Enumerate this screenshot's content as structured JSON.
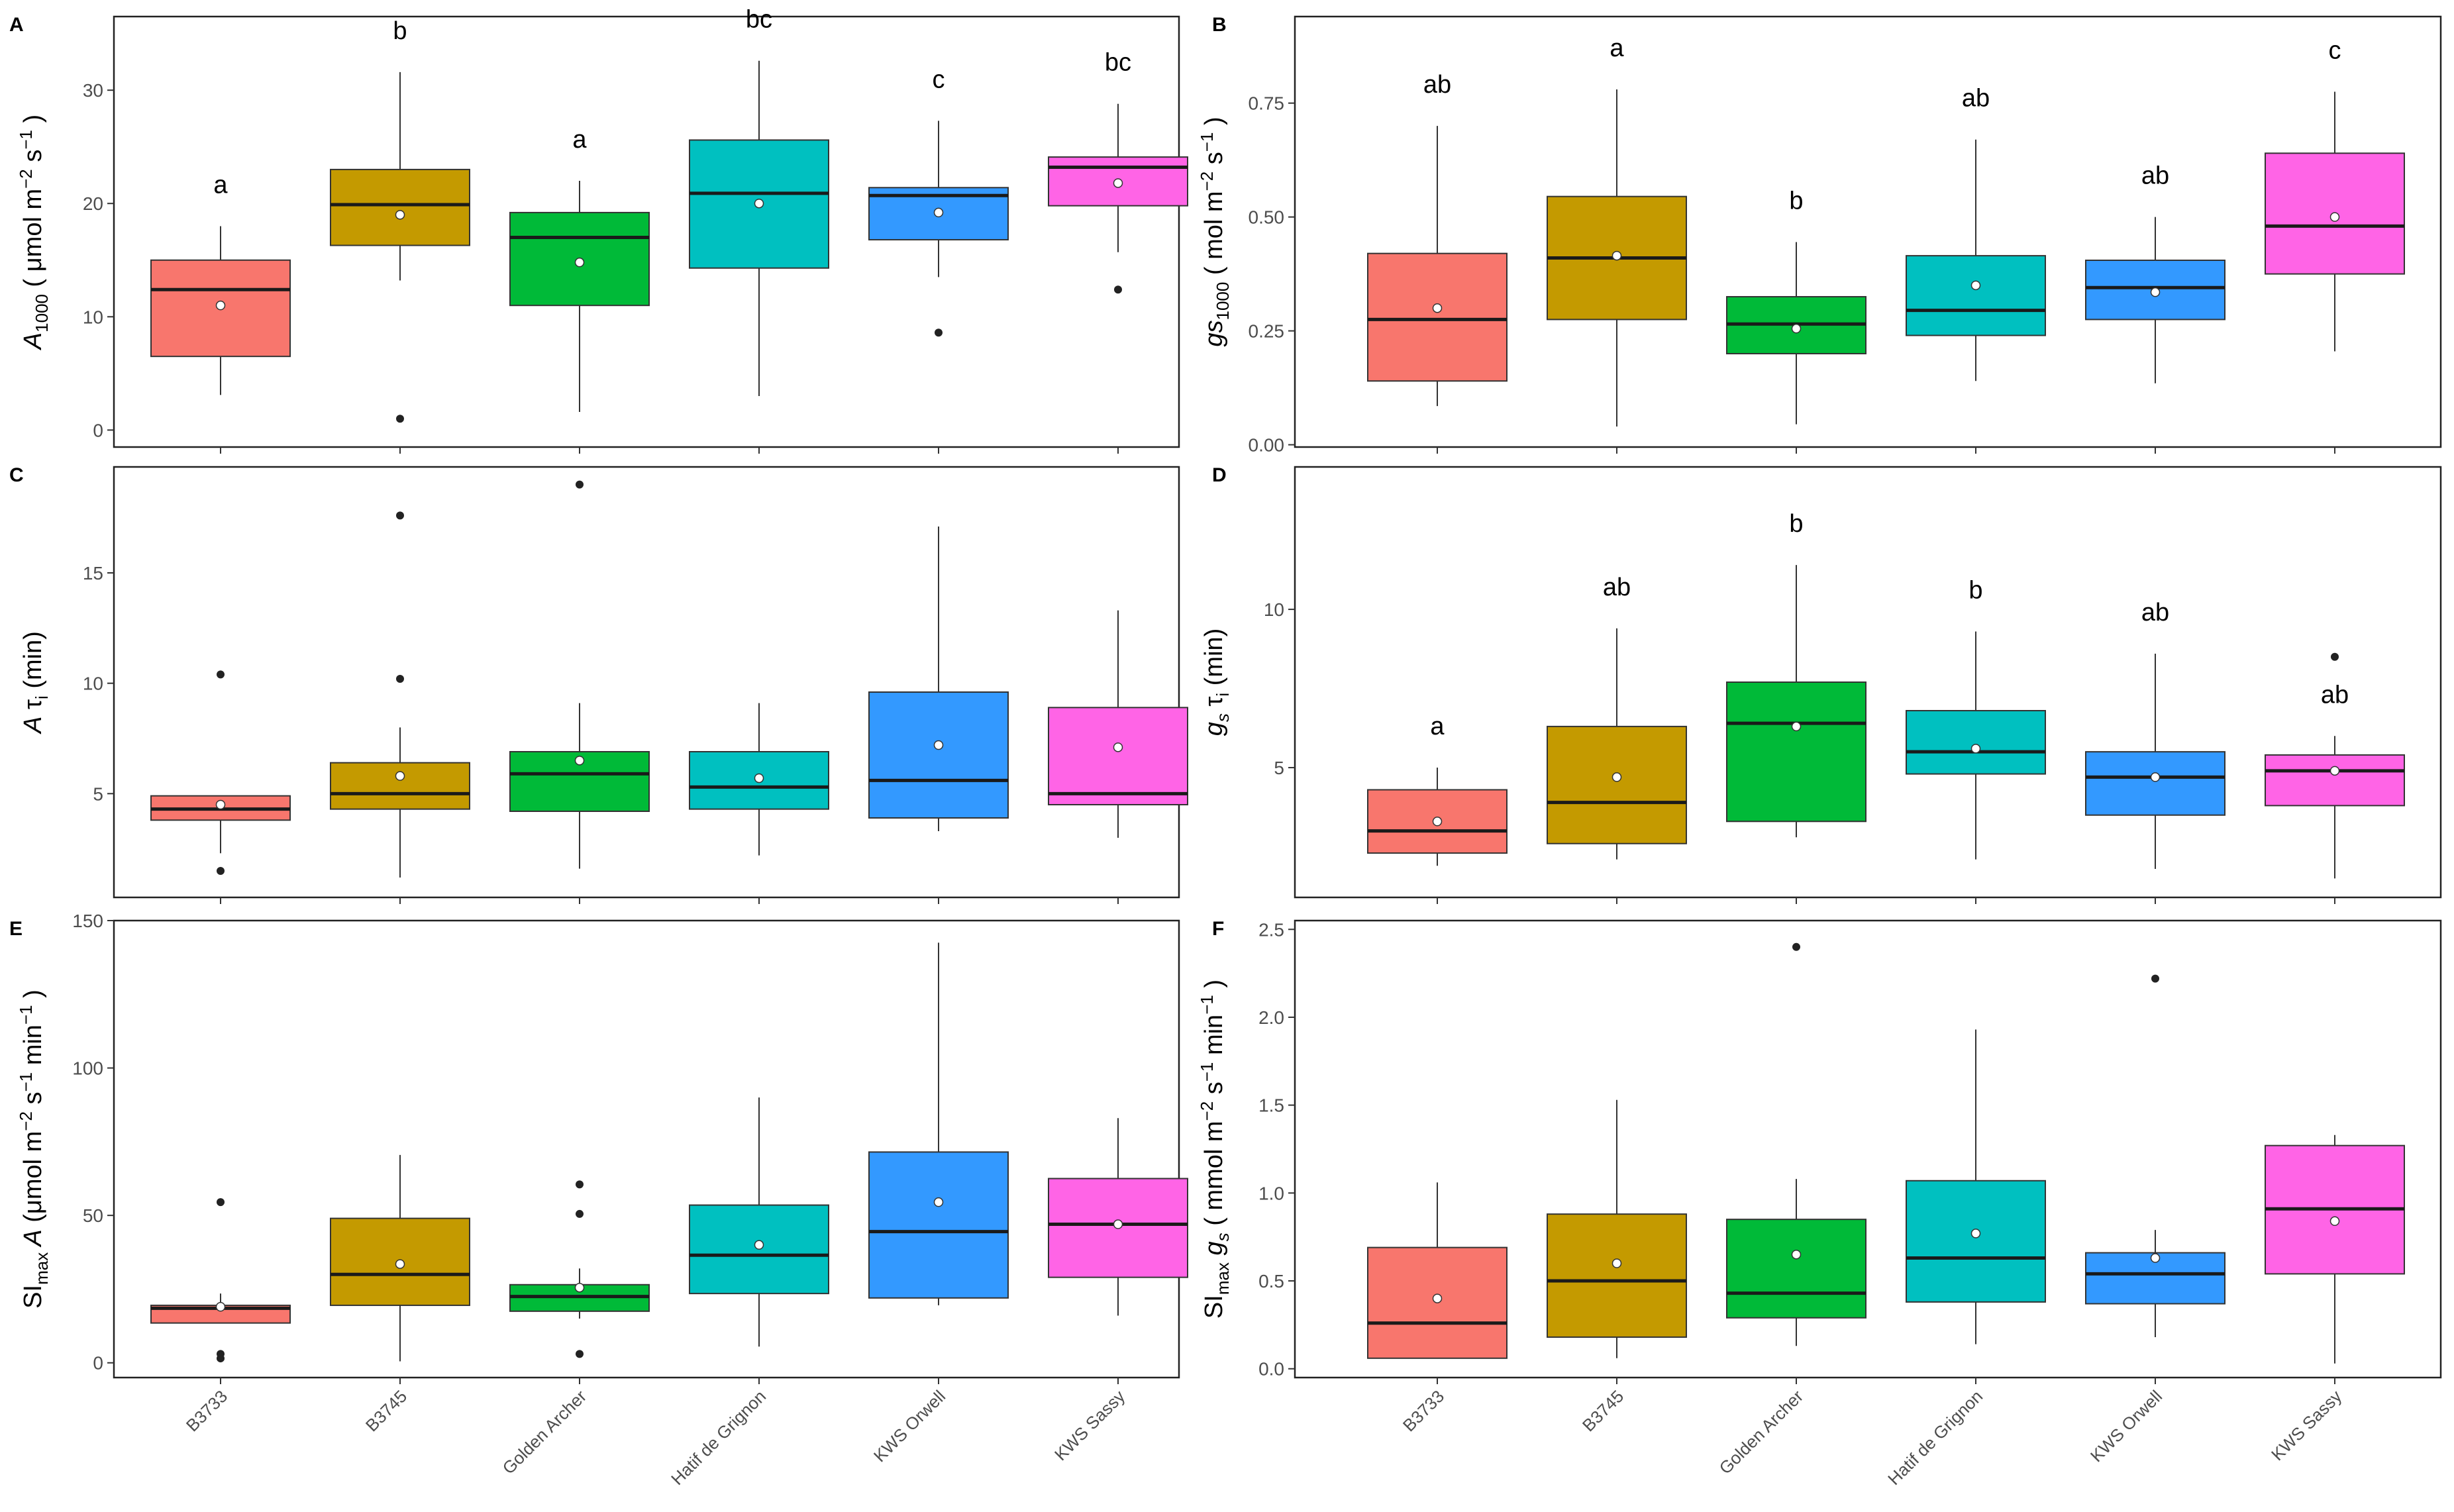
{
  "figure": {
    "categories": [
      "B3733",
      "B3745",
      "Golden Archer",
      "Hatif de Grignon",
      "KWS Orwell",
      "KWS Sassy"
    ],
    "colors": [
      "#F8766D",
      "#C49A00",
      "#00BA38",
      "#00C0C0",
      "#3399FF",
      "#FF64E6"
    ]
  },
  "chart_data": [
    {
      "type": "box",
      "panel": "A",
      "ylabel": "A1000 ( μmol m−2 s−1 )",
      "ylabel_parts": {
        "main": "A",
        "sub": "1000",
        "rest": " ( μmol m",
        "sup1": "−2",
        "mid": " s",
        "sup2": "−1",
        "end": " )"
      },
      "ylim": [
        -1.5,
        36.5
      ],
      "yticks": [
        0,
        10,
        20,
        30
      ],
      "stats": [
        {
          "q1": 6.5,
          "median": 12.4,
          "q3": 15.0,
          "lower": 3.1,
          "upper": 18.0,
          "mean": 11.0,
          "outliers": [],
          "letter": "a"
        },
        {
          "q1": 16.3,
          "median": 19.9,
          "q3": 23.0,
          "lower": 13.2,
          "upper": 31.6,
          "mean": 19.0,
          "outliers": [
            1.0
          ],
          "letter": "b"
        },
        {
          "q1": 11.0,
          "median": 17.0,
          "q3": 19.2,
          "lower": 1.6,
          "upper": 22.0,
          "mean": 14.8,
          "outliers": [],
          "letter": "a"
        },
        {
          "q1": 14.3,
          "median": 20.9,
          "q3": 25.6,
          "lower": 3.0,
          "upper": 32.6,
          "mean": 20.0,
          "outliers": [],
          "letter": "bc"
        },
        {
          "q1": 16.8,
          "median": 20.7,
          "q3": 21.4,
          "lower": 13.5,
          "upper": 27.3,
          "mean": 19.2,
          "outliers": [
            8.6
          ],
          "letter": "c"
        },
        {
          "q1": 19.8,
          "median": 23.2,
          "q3": 24.1,
          "lower": 15.7,
          "upper": 28.8,
          "mean": 21.8,
          "outliers": [
            12.4
          ],
          "letter": "bc"
        }
      ]
    },
    {
      "type": "box",
      "panel": "B",
      "ylabel": "gs1000 ( mol m−2 s−1 )",
      "ylabel_parts": {
        "main": "gs",
        "sub": "1000",
        "rest": " ( mol m",
        "sup1": "−2",
        "mid": " s",
        "sup2": "−1",
        "end": " )"
      },
      "ylim": [
        -0.005,
        0.94
      ],
      "yticks": [
        0.0,
        0.25,
        0.5,
        0.75
      ],
      "tickFormat": 2,
      "stats": [
        {
          "q1": 0.14,
          "median": 0.275,
          "q3": 0.42,
          "lower": 0.085,
          "upper": 0.7,
          "mean": 0.3,
          "outliers": [],
          "letter": "ab"
        },
        {
          "q1": 0.275,
          "median": 0.41,
          "q3": 0.545,
          "lower": 0.04,
          "upper": 0.78,
          "mean": 0.415,
          "outliers": [],
          "letter": "a"
        },
        {
          "q1": 0.2,
          "median": 0.265,
          "q3": 0.325,
          "lower": 0.045,
          "upper": 0.445,
          "mean": 0.255,
          "outliers": [],
          "letter": "b"
        },
        {
          "q1": 0.24,
          "median": 0.295,
          "q3": 0.415,
          "lower": 0.14,
          "upper": 0.67,
          "mean": 0.35,
          "outliers": [],
          "letter": "ab"
        },
        {
          "q1": 0.275,
          "median": 0.345,
          "q3": 0.405,
          "lower": 0.135,
          "upper": 0.5,
          "mean": 0.335,
          "outliers": [],
          "letter": "ab"
        },
        {
          "q1": 0.375,
          "median": 0.48,
          "q3": 0.64,
          "lower": 0.205,
          "upper": 0.775,
          "mean": 0.5,
          "outliers": [],
          "letter": "c"
        }
      ]
    },
    {
      "type": "box",
      "panel": "C",
      "ylabel": "A τi (min)",
      "ylabel_parts": {
        "main": "A",
        "mid1": " τ",
        "sub": "i",
        "end": " (min)"
      },
      "ylim": [
        0.3,
        19.8
      ],
      "yticks": [
        5,
        10,
        15
      ],
      "stats": [
        {
          "q1": 3.8,
          "median": 4.3,
          "q3": 4.9,
          "lower": 2.3,
          "upper": 4.9,
          "mean": 4.5,
          "outliers": [
            1.5,
            10.4
          ],
          "letter": ""
        },
        {
          "q1": 4.3,
          "median": 5.0,
          "q3": 6.4,
          "lower": 1.2,
          "upper": 8.0,
          "mean": 5.8,
          "outliers": [
            10.2,
            17.6
          ],
          "letter": ""
        },
        {
          "q1": 4.2,
          "median": 5.9,
          "q3": 6.9,
          "lower": 1.6,
          "upper": 9.1,
          "mean": 6.5,
          "outliers": [
            19.0
          ],
          "letter": ""
        },
        {
          "q1": 4.3,
          "median": 5.3,
          "q3": 6.9,
          "lower": 2.2,
          "upper": 9.1,
          "mean": 5.7,
          "outliers": [],
          "letter": ""
        },
        {
          "q1": 3.9,
          "median": 5.6,
          "q3": 9.6,
          "lower": 3.3,
          "upper": 17.1,
          "mean": 7.2,
          "outliers": [],
          "letter": ""
        },
        {
          "q1": 4.5,
          "median": 5.0,
          "q3": 8.9,
          "lower": 3.0,
          "upper": 13.3,
          "mean": 7.1,
          "outliers": [],
          "letter": ""
        }
      ]
    },
    {
      "type": "box",
      "panel": "D",
      "ylabel": "gs τi (min)",
      "ylabel_parts": {
        "main": "g",
        "msub": "s",
        "mid1": " τ",
        "sub": "i",
        "end": " (min)"
      },
      "ylim": [
        0.9,
        14.5
      ],
      "yticks": [
        5,
        10
      ],
      "stats": [
        {
          "q1": 2.3,
          "median": 3.0,
          "q3": 4.3,
          "lower": 1.9,
          "upper": 5.0,
          "mean": 3.3,
          "outliers": [],
          "letter": "a"
        },
        {
          "q1": 2.6,
          "median": 3.9,
          "q3": 6.3,
          "lower": 2.1,
          "upper": 9.4,
          "mean": 4.7,
          "outliers": [],
          "letter": "ab"
        },
        {
          "q1": 3.3,
          "median": 6.4,
          "q3": 7.7,
          "lower": 2.8,
          "upper": 11.4,
          "mean": 6.3,
          "outliers": [],
          "letter": "b"
        },
        {
          "q1": 4.8,
          "median": 5.5,
          "q3": 6.8,
          "lower": 2.1,
          "upper": 9.3,
          "mean": 5.6,
          "outliers": [],
          "letter": "b"
        },
        {
          "q1": 3.5,
          "median": 4.7,
          "q3": 5.5,
          "lower": 1.8,
          "upper": 8.6,
          "mean": 4.7,
          "outliers": [],
          "letter": "ab"
        },
        {
          "q1": 3.8,
          "median": 4.9,
          "q3": 5.4,
          "lower": 1.5,
          "upper": 6.0,
          "mean": 4.9,
          "outliers": [
            8.5
          ],
          "letter": "ab"
        }
      ]
    },
    {
      "type": "box",
      "panel": "E",
      "ylabel": "SImax A (μmol m−2 s−1 min−1 )",
      "ylabel_parts": {
        "main": "SI",
        "sub": "max",
        "rest": " A",
        "mid": " (μmol m",
        "sup1": "−2",
        "mid2": " s",
        "sup2": "−1",
        "mid3": " min",
        "sup3": "−1",
        "end": " )"
      },
      "ylim": [
        -5,
        150
      ],
      "yticks": [
        0,
        50,
        100,
        150
      ],
      "stats": [
        {
          "q1": 13.5,
          "median": 18.5,
          "q3": 19.5,
          "lower": 13.5,
          "upper": 23.5,
          "mean": 19.0,
          "outliers": [
            1.5,
            3.0,
            54.5
          ],
          "letter": ""
        },
        {
          "q1": 19.5,
          "median": 30.0,
          "q3": 49.0,
          "lower": 0.5,
          "upper": 70.5,
          "mean": 33.5,
          "outliers": [],
          "letter": ""
        },
        {
          "q1": 17.5,
          "median": 22.5,
          "q3": 26.5,
          "lower": 15.0,
          "upper": 32.0,
          "mean": 25.5,
          "outliers": [
            3.0,
            50.5,
            60.5
          ],
          "letter": ""
        },
        {
          "q1": 23.5,
          "median": 36.5,
          "q3": 53.5,
          "lower": 5.5,
          "upper": 90.0,
          "mean": 40.0,
          "outliers": [],
          "letter": ""
        },
        {
          "q1": 22.0,
          "median": 44.5,
          "q3": 71.5,
          "lower": 19.5,
          "upper": 142.5,
          "mean": 54.5,
          "outliers": [],
          "letter": ""
        },
        {
          "q1": 29.0,
          "median": 47.0,
          "q3": 62.5,
          "lower": 16.0,
          "upper": 83.0,
          "mean": 47.0,
          "outliers": [],
          "letter": ""
        }
      ]
    },
    {
      "type": "box",
      "panel": "F",
      "ylabel": "SImax gs ( mmol m−2 s−1 min−1 )",
      "ylabel_parts": {
        "main": "SI",
        "sub": "max",
        "rest": " g",
        "sub2": "s",
        "mid": " ( mmol m",
        "sup1": "−2",
        "mid2": " s",
        "sup2": "−1",
        "mid3": " min",
        "sup3": "−1",
        "end": " )"
      },
      "ylim": [
        -0.05,
        2.55
      ],
      "yticks": [
        0.0,
        0.5,
        1.0,
        1.5,
        2.0,
        2.5
      ],
      "tickFormat": 1,
      "stats": [
        {
          "q1": 0.06,
          "median": 0.26,
          "q3": 0.69,
          "lower": 0.06,
          "upper": 1.06,
          "mean": 0.4,
          "outliers": [],
          "letter": ""
        },
        {
          "q1": 0.18,
          "median": 0.5,
          "q3": 0.88,
          "lower": 0.06,
          "upper": 1.53,
          "mean": 0.6,
          "outliers": [],
          "letter": ""
        },
        {
          "q1": 0.29,
          "median": 0.43,
          "q3": 0.85,
          "lower": 0.13,
          "upper": 1.08,
          "mean": 0.65,
          "outliers": [
            2.4
          ],
          "letter": ""
        },
        {
          "q1": 0.38,
          "median": 0.63,
          "q3": 1.07,
          "lower": 0.14,
          "upper": 1.93,
          "mean": 0.77,
          "outliers": [],
          "letter": ""
        },
        {
          "q1": 0.37,
          "median": 0.54,
          "q3": 0.66,
          "lower": 0.18,
          "upper": 0.79,
          "mean": 0.63,
          "outliers": [
            2.22
          ],
          "letter": ""
        },
        {
          "q1": 0.54,
          "median": 0.91,
          "q3": 1.27,
          "lower": 0.03,
          "upper": 1.33,
          "mean": 0.84,
          "outliers": [],
          "letter": ""
        }
      ]
    }
  ]
}
